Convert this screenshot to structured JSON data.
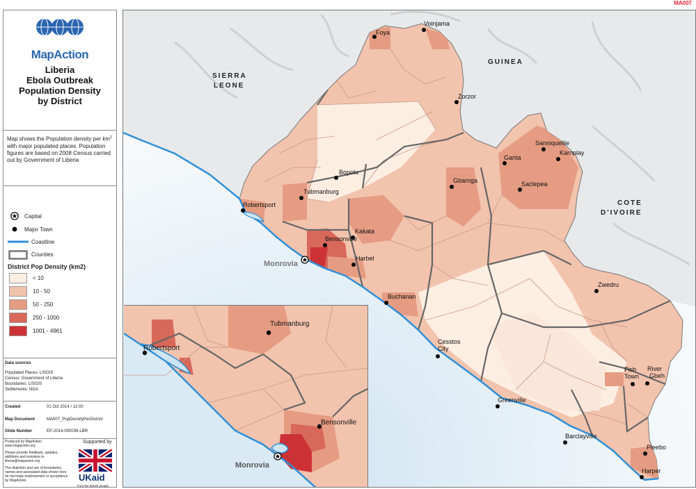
{
  "map_id": "MA007",
  "logo": {
    "text": "MapAction"
  },
  "title": {
    "line1": "Liberia",
    "line2": "Ebola Outbreak",
    "line3": "Population Density",
    "line4": "by District"
  },
  "description": {
    "part1": "Map shows the Population density per km",
    "sup": "2",
    "part2": " with major populated places. Population figures are based on 2008 Census carried out by Government of Liberia"
  },
  "legend": {
    "capital": "Capital",
    "major_town": "Major Town",
    "coastline": "Coastline",
    "counties": "Counties",
    "density_title": "District Pop Density (km2)",
    "classes": [
      {
        "label": "< 10",
        "color": "#fdeee2"
      },
      {
        "label": "10 - 50",
        "color": "#f2c3ad"
      },
      {
        "label": "50 - 250",
        "color": "#e59c82"
      },
      {
        "label": "250 - 1000",
        "color": "#d8685a"
      },
      {
        "label": "1001 - 4961",
        "color": "#cc3235"
      }
    ]
  },
  "sources": {
    "heading": "Data sources",
    "lines": [
      "Populated Places: LISGIS",
      "Census: Government of Liberia",
      "Boundaries: LISGIS",
      "Settlements: NGA"
    ]
  },
  "meta": {
    "created_label": "Created",
    "created_value": "01 Oct 2014 / 12:00",
    "doc_label": "Map Document",
    "doc_value": "MA007_PopDensityPerDistrict",
    "glide_label": "Glide Number",
    "glide_value": "EP-2014-000039-LBR"
  },
  "footer": {
    "produced": "Produced by MapAction",
    "url": "www.mapaction.org",
    "feedback": "Please provide feedback, updates, additions and revisions to liberia@mapaction.org",
    "disclaimer": "The depiction and use of boundaries, names and associated data shown here do not imply endorsement or acceptance by MapAction.",
    "supported_by": "Supported by",
    "ukaid": "UKaid",
    "ukaid_sub": "from the British people"
  },
  "countries": {
    "sierra_leone_1": "SIERRA",
    "sierra_leone_2": "LEONE",
    "guinea": "GUINEA",
    "cote_1": "COTE",
    "cote_2": "D'IVOIRE"
  },
  "capital": "Monrovia",
  "towns": [
    "Foya",
    "Voinjama",
    "Zorzor",
    "Bopolu",
    "Tubmanburg",
    "Robertsport",
    "Kakata",
    "Bensonville",
    "Harbel",
    "Gbarnga",
    "Ganta",
    "Sanniquellie",
    "Karnplay",
    "Saclepea",
    "Buchanan",
    "Cesstos",
    "City",
    "Zwedru",
    "Greenville",
    "Fish",
    "Town",
    "River",
    "Gbeh",
    "Barclayville",
    "Pleebo",
    "Harper"
  ],
  "inset_towns": [
    "Tubmanburg",
    "Robertsport",
    "Bensonville"
  ]
}
